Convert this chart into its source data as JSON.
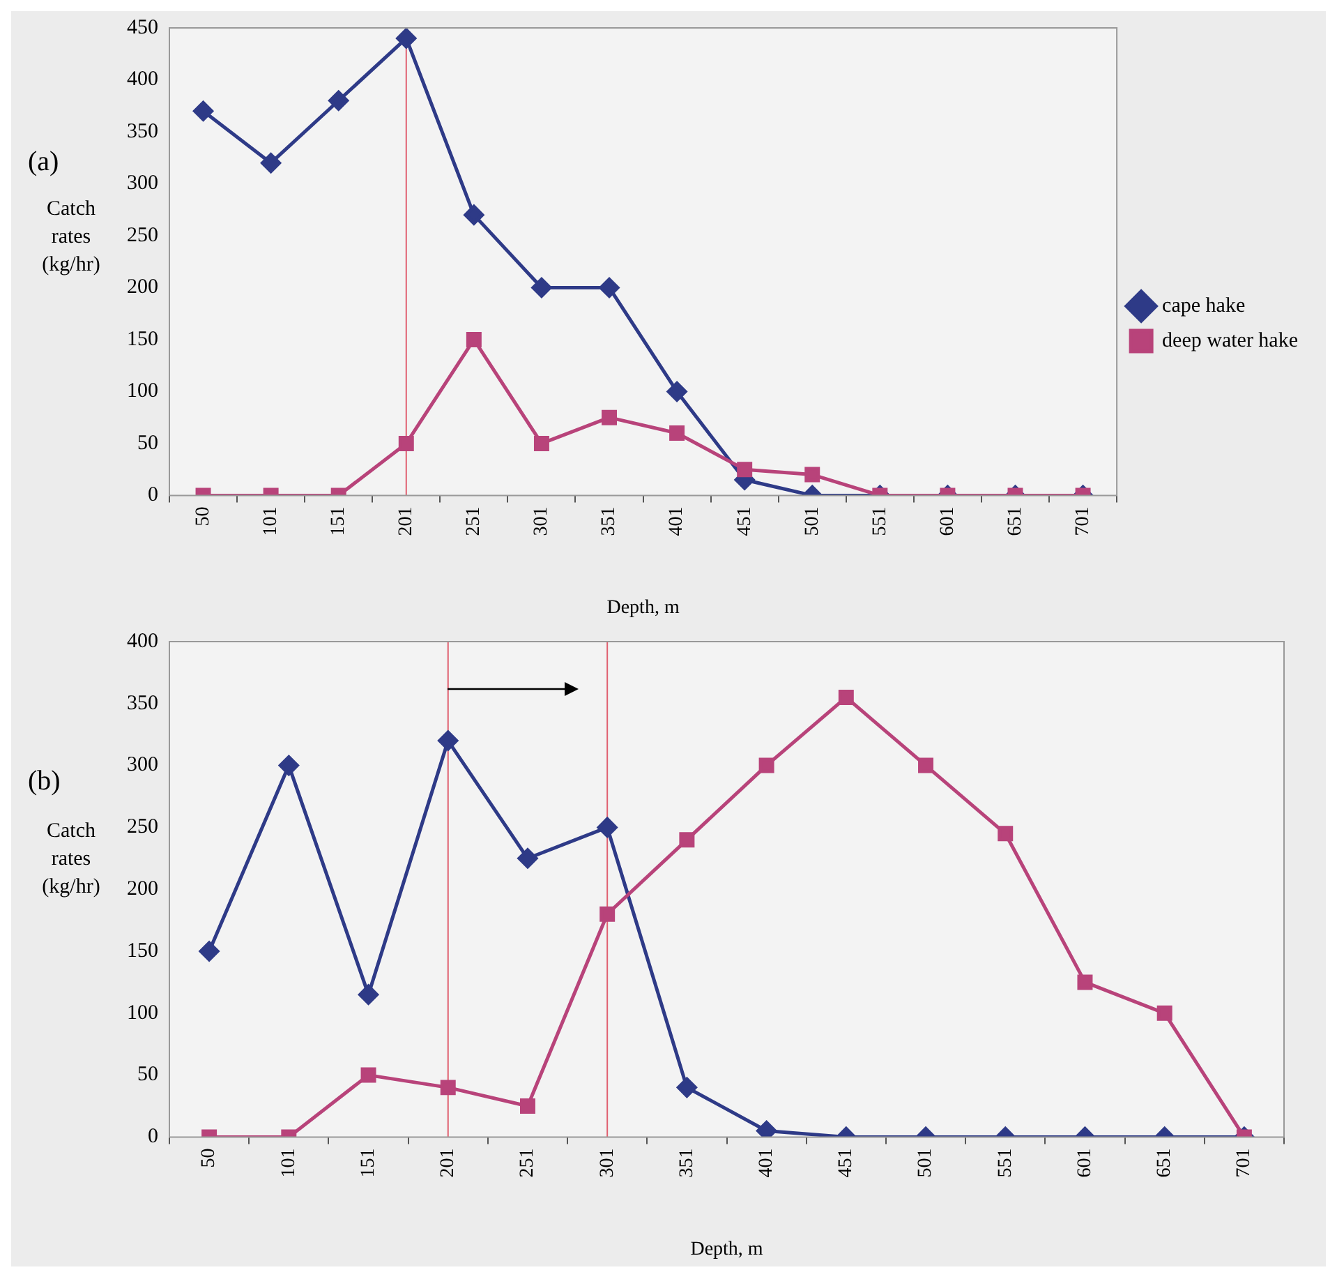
{
  "chart_data": [
    {
      "type": "line",
      "annotations": [
        "(a)"
      ],
      "ylabel": "Catch rates (kg/hr)",
      "xlabel": "Depth, m",
      "categories": [
        "50",
        "101",
        "151",
        "201",
        "251",
        "301",
        "351",
        "401",
        "451",
        "501",
        "551",
        "601",
        "651",
        "701"
      ],
      "series": [
        {
          "name": "cape hake",
          "color": "#2e3a87",
          "marker": "diamond",
          "values": [
            370,
            320,
            380,
            440,
            270,
            200,
            200,
            100,
            15,
            0,
            0,
            0,
            0,
            0
          ]
        },
        {
          "name": "deep water hake",
          "color": "#b8437a",
          "marker": "square",
          "values": [
            0,
            0,
            0,
            50,
            150,
            50,
            75,
            60,
            25,
            20,
            0,
            0,
            0,
            0
          ]
        }
      ],
      "ylim": [
        0,
        450
      ],
      "yticks": [
        0,
        50,
        100,
        150,
        200,
        250,
        300,
        350,
        400,
        450
      ],
      "grid": false,
      "legend": "right",
      "line_style": "solid",
      "ref_lines": [
        {
          "axis": "x",
          "value": "201",
          "color": "#e06070"
        }
      ]
    },
    {
      "type": "line",
      "annotations": [
        "(b)"
      ],
      "ylabel": "Catch rates (kg/hr)",
      "xlabel": "Depth, m",
      "categories": [
        "50",
        "101",
        "151",
        "201",
        "251",
        "301",
        "351",
        "401",
        "451",
        "501",
        "551",
        "601",
        "651",
        "701"
      ],
      "series": [
        {
          "color": "#2e3a87",
          "marker": "diamond",
          "values": [
            150,
            300,
            115,
            320,
            225,
            250,
            40,
            5,
            0,
            0,
            0,
            0,
            0,
            0
          ]
        },
        {
          "color": "#b8437a",
          "marker": "square",
          "values": [
            0,
            0,
            50,
            40,
            25,
            180,
            240,
            300,
            355,
            300,
            245,
            125,
            100,
            0
          ]
        }
      ],
      "ylim": [
        0,
        400
      ],
      "yticks": [
        0,
        50,
        100,
        150,
        200,
        250,
        300,
        350,
        400
      ],
      "grid": false,
      "legend": false,
      "line_style": "solid",
      "ref_lines": [
        {
          "axis": "x",
          "value": "201",
          "color": "#e06070"
        },
        {
          "axis": "x",
          "value": "301",
          "color": "#e06070"
        }
      ]
    }
  ]
}
